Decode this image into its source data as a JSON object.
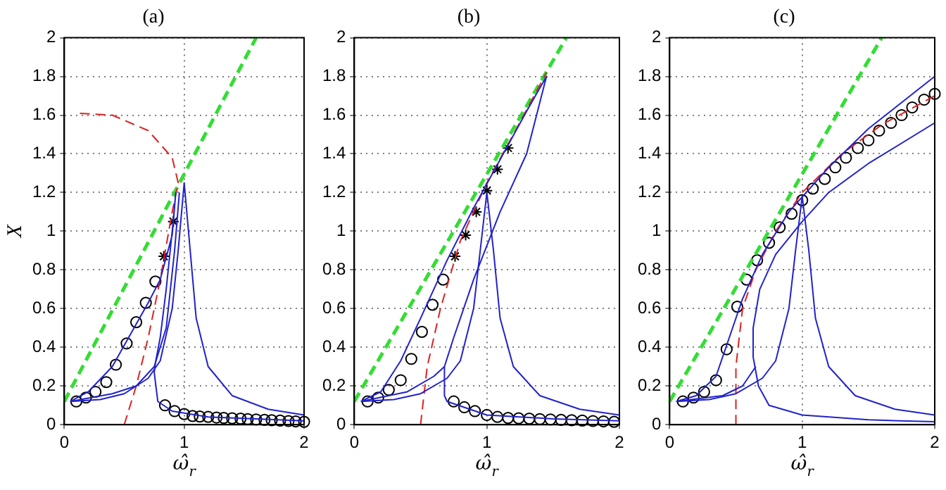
{
  "chart_data": [
    {
      "type": "line",
      "title": "(a)",
      "xlabel": "ω̂$_{r}$",
      "ylabel": "X",
      "xlim": [
        0,
        2
      ],
      "xticks": [
        0,
        1,
        2
      ],
      "ylim": [
        0,
        2
      ],
      "yticks": [
        0,
        0.2,
        0.4,
        0.6,
        0.8,
        1,
        1.2,
        1.4,
        1.6,
        1.8,
        2
      ],
      "grid": true,
      "series": [
        {
          "type": "line",
          "color": "#2222cc",
          "line_style": "solid",
          "marker": "none",
          "x": [
            0.05,
            0.3,
            0.5,
            0.7,
            0.8,
            0.9,
            0.95,
            1.0,
            1.05,
            1.1,
            1.2,
            1.4,
            1.7,
            2
          ],
          "values": [
            0.12,
            0.13,
            0.16,
            0.24,
            0.33,
            0.6,
            0.9,
            1.25,
            0.9,
            0.55,
            0.3,
            0.15,
            0.08,
            0.05
          ]
        },
        {
          "type": "line",
          "color": "#2222cc",
          "line_style": "solid",
          "marker": "none",
          "x": [
            0.05,
            0.2,
            0.4,
            0.6,
            0.7,
            0.8,
            0.9,
            0.93,
            0.9,
            0.85,
            0.8,
            0.76,
            0.75,
            0.78,
            0.9,
            1.2,
            1.6,
            2
          ],
          "values": [
            0.12,
            0.17,
            0.3,
            0.52,
            0.63,
            0.75,
            0.98,
            1.2,
            1.0,
            0.7,
            0.45,
            0.32,
            0.27,
            0.12,
            0.07,
            0.04,
            0.03,
            0.02
          ]
        },
        {
          "type": "line",
          "color": "#2222cc",
          "line_style": "solid",
          "marker": "none",
          "x": [
            0.05,
            0.4,
            0.6,
            0.75,
            0.85,
            0.92,
            0.96
          ],
          "values": [
            0.12,
            0.16,
            0.2,
            0.3,
            0.5,
            0.9,
            1.2
          ]
        },
        {
          "type": "line",
          "color": "#dd2222",
          "line_style": "dashed",
          "marker": "none",
          "x": [
            0.5,
            0.6,
            0.7,
            0.8,
            0.9,
            0.95,
            0.9,
            0.7,
            0.4,
            0.1
          ],
          "values": [
            0,
            0.2,
            0.45,
            0.75,
            1.1,
            1.25,
            1.38,
            1.52,
            1.6,
            1.61
          ]
        },
        {
          "type": "line",
          "color": "#33dd33",
          "line_style": "dashed",
          "marker": "none",
          "x": [
            0,
            1.6
          ],
          "values": [
            0.12,
            2
          ]
        },
        {
          "type": "scatter",
          "color": "#000000",
          "marker": "circle",
          "x": [
            0.1,
            0.18,
            0.26,
            0.35,
            0.43,
            0.52,
            0.6,
            0.68,
            0.76,
            1.07,
            1.13,
            1.2,
            1.27,
            1.33,
            1.4,
            1.47,
            1.53,
            1.6,
            1.67,
            1.73,
            1.8,
            1.87,
            1.93,
            2.0
          ],
          "values": [
            0.12,
            0.14,
            0.17,
            0.22,
            0.31,
            0.42,
            0.53,
            0.63,
            0.74,
            0.045,
            0.042,
            0.04,
            0.037,
            0.035,
            0.033,
            0.031,
            0.029,
            0.027,
            0.025,
            0.023,
            0.021,
            0.019,
            0.017,
            0.015
          ]
        },
        {
          "type": "scatter",
          "color": "#000000",
          "marker": "cross",
          "x": [
            0.83,
            0.91
          ],
          "values": [
            0.87,
            1.05
          ]
        },
        {
          "type": "scatter",
          "color": "#000000",
          "marker": "circle",
          "x": [
            0.84,
            0.92,
            1.0
          ],
          "values": [
            0.1,
            0.07,
            0.055
          ]
        }
      ]
    },
    {
      "type": "line",
      "title": "(b)",
      "xlabel": "ω̂$_{r}$",
      "xlim": [
        0,
        2
      ],
      "xticks": [
        0,
        1,
        2
      ],
      "ylim": [
        0,
        2
      ],
      "yticks": [
        0,
        0.2,
        0.4,
        0.6,
        0.8,
        1,
        1.2,
        1.4,
        1.6,
        1.8,
        2
      ],
      "grid": true,
      "series": [
        {
          "type": "line",
          "color": "#2222cc",
          "line_style": "solid",
          "marker": "none",
          "x": [
            0.05,
            0.3,
            0.5,
            0.7,
            0.8,
            0.9,
            0.95,
            1.0,
            1.05,
            1.1,
            1.2,
            1.4,
            1.7,
            2
          ],
          "values": [
            0.12,
            0.13,
            0.16,
            0.24,
            0.33,
            0.6,
            0.9,
            1.2,
            0.9,
            0.55,
            0.3,
            0.15,
            0.08,
            0.05
          ]
        },
        {
          "type": "line",
          "color": "#2222cc",
          "line_style": "solid",
          "marker": "none",
          "x": [
            0.05,
            0.2,
            0.35,
            0.5,
            0.7,
            0.9,
            1.1,
            1.3,
            1.45,
            1.3,
            1.1,
            0.9,
            0.75,
            0.68,
            0.68,
            0.7,
            1.0,
            1.5,
            2
          ],
          "values": [
            0.12,
            0.17,
            0.33,
            0.55,
            0.85,
            1.12,
            1.37,
            1.62,
            1.8,
            1.4,
            1.1,
            0.75,
            0.45,
            0.3,
            0.15,
            0.12,
            0.05,
            0.03,
            0.02
          ]
        },
        {
          "type": "line",
          "color": "#2222cc",
          "line_style": "solid",
          "marker": "none",
          "x": [
            0.05,
            0.4,
            0.6,
            0.68
          ],
          "values": [
            0.12,
            0.17,
            0.25,
            0.3
          ]
        },
        {
          "type": "line",
          "color": "#dd2222",
          "line_style": "dashed",
          "marker": "none",
          "x": [
            0.5,
            0.55,
            0.65,
            0.8,
            1.0,
            1.2,
            1.45
          ],
          "values": [
            0,
            0.3,
            0.6,
            0.95,
            1.25,
            1.5,
            1.82
          ]
        },
        {
          "type": "line",
          "color": "#33dd33",
          "line_style": "dashed",
          "marker": "none",
          "x": [
            0,
            1.6
          ],
          "values": [
            0.12,
            2
          ]
        },
        {
          "type": "scatter",
          "color": "#000000",
          "marker": "circle",
          "x": [
            0.1,
            0.18,
            0.26,
            0.35,
            0.43,
            0.51,
            0.59,
            0.67,
            1.24,
            1.32,
            1.4,
            1.48,
            1.56,
            1.64,
            1.72,
            1.8,
            1.88,
            1.96
          ],
          "values": [
            0.12,
            0.14,
            0.18,
            0.23,
            0.34,
            0.48,
            0.62,
            0.75,
            0.033,
            0.031,
            0.029,
            0.027,
            0.025,
            0.023,
            0.021,
            0.019,
            0.017,
            0.015
          ]
        },
        {
          "type": "scatter",
          "color": "#000000",
          "marker": "cross",
          "x": [
            0.76,
            0.84,
            0.92,
            1.0,
            1.08,
            1.16
          ],
          "values": [
            0.87,
            0.98,
            1.1,
            1.21,
            1.32,
            1.43
          ]
        },
        {
          "type": "scatter",
          "color": "#000000",
          "marker": "circle",
          "x": [
            0.75,
            0.83,
            0.91,
            1.0,
            1.08,
            1.16
          ],
          "values": [
            0.12,
            0.09,
            0.07,
            0.05,
            0.04,
            0.035
          ]
        }
      ]
    },
    {
      "type": "line",
      "title": "(c)",
      "xlabel": "ω̂$_{r}$",
      "xlim": [
        0,
        2
      ],
      "xticks": [
        0,
        1,
        2
      ],
      "ylim": [
        0,
        2
      ],
      "yticks": [
        0,
        0.2,
        0.4,
        0.6,
        0.8,
        1,
        1.2,
        1.4,
        1.6,
        1.8,
        2
      ],
      "grid": true,
      "series": [
        {
          "type": "line",
          "color": "#2222cc",
          "line_style": "solid",
          "marker": "none",
          "x": [
            0.05,
            0.3,
            0.5,
            0.7,
            0.8,
            0.9,
            0.95,
            1.0,
            1.05,
            1.1,
            1.2,
            1.4,
            1.7,
            2
          ],
          "values": [
            0.12,
            0.13,
            0.16,
            0.24,
            0.33,
            0.6,
            0.9,
            1.18,
            0.9,
            0.55,
            0.3,
            0.15,
            0.08,
            0.05
          ]
        },
        {
          "type": "line",
          "color": "#2222cc",
          "line_style": "solid",
          "marker": "none",
          "x": [
            0.05,
            0.2,
            0.35,
            0.45,
            0.55,
            0.7,
            0.9,
            1.2,
            1.5,
            2
          ],
          "values": [
            0.12,
            0.15,
            0.25,
            0.45,
            0.65,
            0.88,
            1.1,
            1.33,
            1.53,
            1.8
          ]
        },
        {
          "type": "line",
          "color": "#2222cc",
          "line_style": "solid",
          "marker": "none",
          "x": [
            2,
            1.5,
            1.2,
            1.0,
            0.8,
            0.68,
            0.63,
            0.63,
            0.67,
            0.75,
            1.0,
            1.5,
            2
          ],
          "values": [
            1.56,
            1.35,
            1.2,
            1.05,
            0.88,
            0.7,
            0.5,
            0.35,
            0.2,
            0.1,
            0.05,
            0.025,
            0.015
          ]
        },
        {
          "type": "line",
          "color": "#2222cc",
          "line_style": "solid",
          "marker": "none",
          "x": [
            0.05,
            0.4,
            0.55,
            0.65
          ],
          "values": [
            0.12,
            0.15,
            0.2,
            0.3
          ]
        },
        {
          "type": "line",
          "color": "#dd2222",
          "line_style": "dashed",
          "marker": "none",
          "x": [
            0.5,
            0.5,
            0.55,
            0.65,
            0.8,
            1.0,
            1.3,
            1.6,
            2
          ],
          "values": [
            0,
            0.3,
            0.6,
            0.8,
            1.0,
            1.2,
            1.4,
            1.55,
            1.7
          ]
        },
        {
          "type": "line",
          "color": "#33dd33",
          "line_style": "dashed",
          "marker": "none",
          "x": [
            0,
            1.6
          ],
          "values": [
            0.12,
            2
          ]
        },
        {
          "type": "scatter",
          "color": "#000000",
          "marker": "circle",
          "x": [
            0.1,
            0.18,
            0.26,
            0.35,
            0.43,
            0.51,
            0.58,
            0.66,
            0.75,
            0.83,
            0.92,
            1.0,
            1.08,
            1.17,
            1.25,
            1.33,
            1.42,
            1.5,
            1.58,
            1.67,
            1.75,
            1.83,
            1.92,
            2.0
          ],
          "values": [
            0.12,
            0.14,
            0.17,
            0.23,
            0.39,
            0.61,
            0.75,
            0.85,
            0.94,
            1.02,
            1.09,
            1.16,
            1.22,
            1.27,
            1.33,
            1.38,
            1.43,
            1.47,
            1.52,
            1.56,
            1.6,
            1.64,
            1.68,
            1.71
          ]
        }
      ]
    }
  ]
}
